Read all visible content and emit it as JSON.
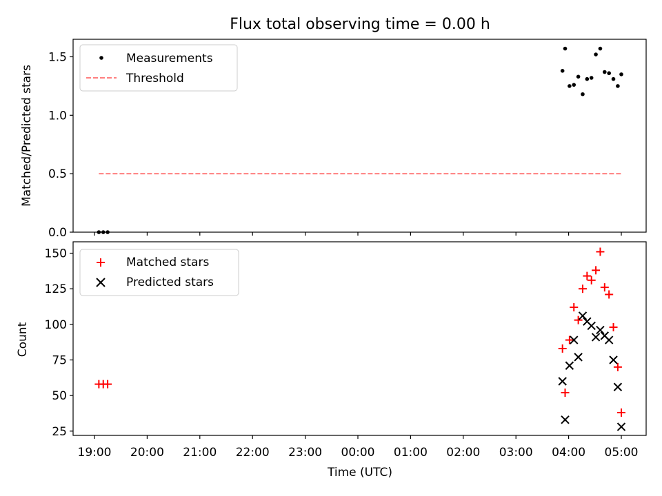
{
  "chart_data": [
    {
      "type": "scatter",
      "title": "Flux total observing time = 0.00 h",
      "ylabel": "Matched/Predicted stars",
      "xlabel": "",
      "ylim": [
        0,
        1.65
      ],
      "yticks": [
        0.0,
        0.5,
        1.0,
        1.5
      ],
      "ytick_labels": [
        "0.0",
        "0.5",
        "1.0",
        "1.5"
      ],
      "grid": false,
      "legend_position": "top-left",
      "series": [
        {
          "name": "Measurements",
          "style": "dot",
          "color": "#000000",
          "points": [
            [
              "19:05",
              0.0
            ],
            [
              "19:10",
              0.0
            ],
            [
              "19:15",
              0.0
            ],
            [
              "03:53",
              1.38
            ],
            [
              "03:56",
              1.57
            ],
            [
              "04:01",
              1.25
            ],
            [
              "04:06",
              1.26
            ],
            [
              "04:11",
              1.33
            ],
            [
              "04:16",
              1.18
            ],
            [
              "04:21",
              1.31
            ],
            [
              "04:26",
              1.32
            ],
            [
              "04:31",
              1.52
            ],
            [
              "04:36",
              1.57
            ],
            [
              "04:41",
              1.37
            ],
            [
              "04:46",
              1.36
            ],
            [
              "04:51",
              1.31
            ],
            [
              "04:56",
              1.25
            ],
            [
              "05:00",
              1.35
            ]
          ]
        },
        {
          "name": "Threshold",
          "style": "dashed-line",
          "color": "#ff7f7f",
          "points": [
            [
              "19:05",
              0.5
            ],
            [
              "05:00",
              0.5
            ]
          ]
        }
      ]
    },
    {
      "type": "scatter",
      "title": "",
      "ylabel": "Count",
      "xlabel": "Time (UTC)",
      "ylim": [
        22,
        158
      ],
      "yticks": [
        25,
        50,
        75,
        100,
        125,
        150
      ],
      "ytick_labels": [
        "25",
        "50",
        "75",
        "100",
        "125",
        "150"
      ],
      "xticks": [
        "19:00",
        "20:00",
        "21:00",
        "22:00",
        "23:00",
        "00:00",
        "01:00",
        "02:00",
        "03:00",
        "04:00",
        "05:00"
      ],
      "grid": false,
      "legend_position": "top-left",
      "series": [
        {
          "name": "Matched stars",
          "marker": "plus",
          "color": "#ff0000",
          "points": [
            [
              "19:05",
              58
            ],
            [
              "19:10",
              58
            ],
            [
              "19:15",
              58
            ],
            [
              "03:53",
              83
            ],
            [
              "03:56",
              52
            ],
            [
              "04:01",
              89
            ],
            [
              "04:06",
              112
            ],
            [
              "04:11",
              103
            ],
            [
              "04:16",
              125
            ],
            [
              "04:21",
              134
            ],
            [
              "04:26",
              131
            ],
            [
              "04:31",
              138
            ],
            [
              "04:36",
              151
            ],
            [
              "04:41",
              126
            ],
            [
              "04:46",
              121
            ],
            [
              "04:51",
              98
            ],
            [
              "04:56",
              70
            ],
            [
              "05:00",
              38
            ]
          ]
        },
        {
          "name": "Predicted stars",
          "marker": "x",
          "color": "#000000",
          "points": [
            [
              "03:53",
              60
            ],
            [
              "03:56",
              33
            ],
            [
              "04:01",
              71
            ],
            [
              "04:06",
              89
            ],
            [
              "04:11",
              77
            ],
            [
              "04:16",
              106
            ],
            [
              "04:21",
              102
            ],
            [
              "04:26",
              99
            ],
            [
              "04:31",
              91
            ],
            [
              "04:36",
              96
            ],
            [
              "04:41",
              92
            ],
            [
              "04:46",
              89
            ],
            [
              "04:51",
              75
            ],
            [
              "04:56",
              56
            ],
            [
              "05:00",
              28
            ]
          ]
        }
      ]
    }
  ]
}
